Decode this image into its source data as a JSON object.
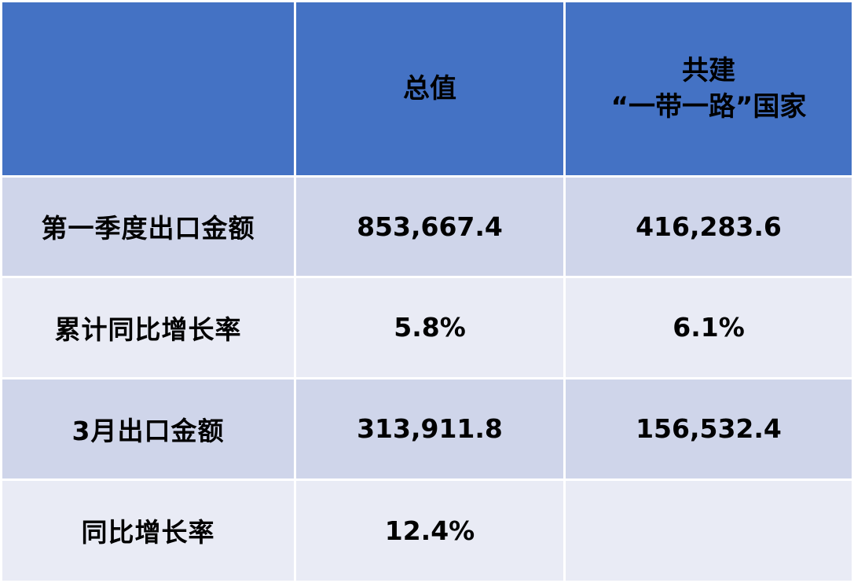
{
  "header": {
    "col0": "",
    "col1": "总值",
    "col2_line1": "共建",
    "col2_line2": "“一带一路”国家"
  },
  "rows": [
    {
      "label": "第一季度出口金额",
      "total": "853,667.4",
      "belt_road": "416,283.6"
    },
    {
      "label": "累计同比增长率",
      "total": "5.8%",
      "belt_road": "6.1%"
    },
    {
      "label": "3月出口金额",
      "total": "313,911.8",
      "belt_road": "156,532.4"
    },
    {
      "label": "同比增长率",
      "total": "12.4%",
      "belt_road": ""
    }
  ],
  "colors": {
    "header_bg": "#4472c4",
    "row_odd_bg": "#cfd5ea",
    "row_even_bg": "#e9ebf5"
  }
}
